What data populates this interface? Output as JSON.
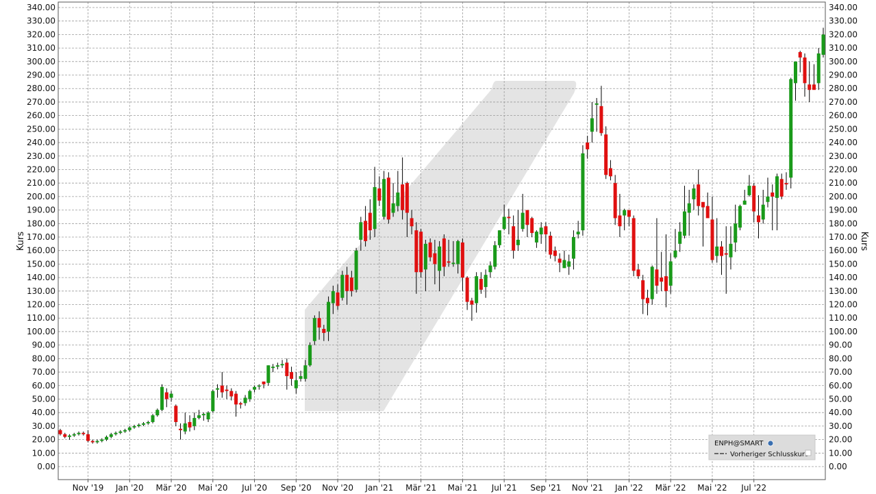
{
  "chart_data": {
    "type": "candlestick",
    "ylabel_left": "Kurs",
    "ylabel_right": "Kurs",
    "ylim": [
      0,
      340
    ],
    "y_tick_step": 10,
    "grid": true,
    "x_tick_labels": [
      "Nov '19",
      "Jan '20",
      "Mär '20",
      "Mai '20",
      "Jul '20",
      "Sep '20",
      "Nov '20",
      "Jan '21",
      "Mär '21",
      "Mai '21",
      "Jul '21",
      "Sep '21",
      "Nov '21",
      "Jan '22",
      "Mär '22",
      "Mai '22",
      "Jul '22"
    ],
    "x_tick_week_index": [
      6,
      15,
      24,
      33,
      42,
      51,
      60,
      69,
      78,
      87,
      96,
      105,
      114,
      123,
      132,
      141,
      150
    ],
    "up_color": "#1a9a1a",
    "down_color": "#e01010",
    "legend": {
      "placement": "bottom-right",
      "symbol": "ENPH@SMART",
      "prev_close_label": "Vorheriger Schlusskurs"
    },
    "candles": [
      [
        27,
        24,
        28,
        23
      ],
      [
        24,
        22,
        25,
        21
      ],
      [
        22,
        23,
        24,
        20
      ],
      [
        23,
        24,
        25,
        22
      ],
      [
        24,
        25,
        26,
        23
      ],
      [
        25,
        24,
        26,
        23
      ],
      [
        24,
        19,
        27,
        18
      ],
      [
        19,
        18,
        20,
        17
      ],
      [
        18,
        19,
        20,
        17
      ],
      [
        19,
        20,
        21,
        18
      ],
      [
        20,
        22,
        23,
        19
      ],
      [
        22,
        24,
        25,
        21
      ],
      [
        24,
        25,
        26,
        23
      ],
      [
        25,
        26,
        27,
        24
      ],
      [
        26,
        27,
        28,
        25
      ],
      [
        27,
        29,
        30,
        26
      ],
      [
        29,
        30,
        31,
        28
      ],
      [
        30,
        31,
        32,
        29
      ],
      [
        31,
        32,
        33,
        30
      ],
      [
        32,
        33,
        34,
        31
      ],
      [
        33,
        38,
        39,
        32
      ],
      [
        38,
        42,
        43,
        37
      ],
      [
        42,
        59,
        61,
        41
      ],
      [
        55,
        50,
        58,
        44
      ],
      [
        51,
        54,
        56,
        48
      ],
      [
        45,
        33,
        46,
        30
      ],
      [
        28,
        27,
        32,
        20
      ],
      [
        26,
        32,
        40,
        24
      ],
      [
        33,
        29,
        38,
        26
      ],
      [
        30,
        36,
        40,
        27
      ],
      [
        36,
        38,
        42,
        35
      ],
      [
        38,
        39,
        40,
        34
      ],
      [
        35,
        40,
        41,
        33
      ],
      [
        41,
        56,
        57,
        40
      ],
      [
        57,
        58,
        61,
        51
      ],
      [
        60,
        55,
        70,
        51
      ],
      [
        57,
        56,
        60,
        50
      ],
      [
        56,
        52,
        58,
        49
      ],
      [
        54,
        46,
        56,
        37
      ],
      [
        47,
        46,
        48,
        43
      ],
      [
        47,
        51,
        53,
        45
      ],
      [
        50,
        56,
        57,
        48
      ],
      [
        57,
        59,
        60,
        55
      ],
      [
        60,
        60,
        61,
        57
      ],
      [
        63,
        61,
        63,
        58
      ],
      [
        62,
        75,
        75,
        60
      ],
      [
        73,
        74,
        76,
        70
      ],
      [
        74,
        75,
        77,
        72
      ],
      [
        75,
        76,
        79,
        73
      ],
      [
        77,
        67,
        80,
        57
      ],
      [
        70,
        65,
        74,
        60
      ],
      [
        58,
        64,
        70,
        54
      ],
      [
        65,
        67,
        71,
        63
      ],
      [
        65,
        75,
        79,
        63
      ],
      [
        75,
        90,
        92,
        74
      ],
      [
        93,
        110,
        112,
        90
      ],
      [
        110,
        103,
        115,
        94
      ],
      [
        102,
        99,
        105,
        93
      ],
      [
        100,
        122,
        126,
        93
      ],
      [
        121,
        130,
        134,
        113
      ],
      [
        129,
        119,
        135,
        116
      ],
      [
        125,
        142,
        145,
        123
      ],
      [
        142,
        130,
        148,
        120
      ],
      [
        140,
        130,
        145,
        126
      ],
      [
        131,
        160,
        162,
        129
      ],
      [
        168,
        181,
        185,
        160
      ],
      [
        182,
        167,
        193,
        163
      ],
      [
        188,
        175,
        198,
        168
      ],
      [
        176,
        207,
        222,
        170
      ],
      [
        206,
        197,
        215,
        193
      ],
      [
        185,
        213,
        219,
        183
      ],
      [
        214,
        183,
        218,
        180
      ],
      [
        188,
        195,
        210,
        185
      ],
      [
        193,
        203,
        219,
        189
      ],
      [
        209,
        190,
        229,
        183
      ],
      [
        210,
        188,
        211,
        170
      ],
      [
        184,
        178,
        190,
        172
      ],
      [
        175,
        144,
        181,
        128
      ],
      [
        174,
        144,
        176,
        140
      ],
      [
        146,
        165,
        168,
        130
      ],
      [
        166,
        155,
        169,
        152
      ],
      [
        158,
        150,
        168,
        135
      ],
      [
        145,
        163,
        167,
        130
      ],
      [
        169,
        148,
        172,
        141
      ],
      [
        152,
        151,
        168,
        148
      ],
      [
        150,
        151,
        167,
        148
      ],
      [
        150,
        167,
        168,
        143
      ],
      [
        166,
        140,
        169,
        130
      ],
      [
        140,
        122,
        141,
        116
      ],
      [
        123,
        120,
        125,
        108
      ],
      [
        121,
        141,
        144,
        114
      ],
      [
        139,
        131,
        144,
        128
      ],
      [
        133,
        142,
        146,
        125
      ],
      [
        144,
        149,
        152,
        140
      ],
      [
        148,
        164,
        167,
        146
      ],
      [
        164,
        175,
        175,
        162
      ],
      [
        176,
        185,
        194,
        175
      ],
      [
        185,
        184,
        191,
        172
      ],
      [
        178,
        160,
        186,
        154
      ],
      [
        164,
        168,
        190,
        160
      ],
      [
        176,
        188,
        202,
        174
      ],
      [
        190,
        179,
        190,
        170
      ],
      [
        184,
        173,
        185,
        170
      ],
      [
        166,
        174,
        175,
        162
      ],
      [
        172,
        177,
        181,
        165
      ],
      [
        178,
        172,
        181,
        159
      ],
      [
        171,
        157,
        174,
        154
      ],
      [
        160,
        156,
        163,
        152
      ],
      [
        154,
        151,
        158,
        144
      ],
      [
        147,
        153,
        160,
        150
      ],
      [
        148,
        152,
        157,
        142
      ],
      [
        154,
        170,
        175,
        146
      ],
      [
        172,
        174,
        182,
        169
      ],
      [
        175,
        232,
        238,
        171
      ],
      [
        240,
        235,
        245,
        228
      ],
      [
        248,
        258,
        270,
        240
      ],
      [
        268,
        269,
        273,
        248
      ],
      [
        267,
        247,
        282,
        245
      ],
      [
        246,
        216,
        252,
        213
      ],
      [
        221,
        215,
        227,
        212
      ],
      [
        210,
        184,
        216,
        179
      ],
      [
        186,
        178,
        202,
        170
      ],
      [
        186,
        190,
        191,
        175
      ],
      [
        190,
        185,
        190,
        178
      ],
      [
        184,
        145,
        186,
        141
      ],
      [
        146,
        141,
        150,
        139
      ],
      [
        138,
        124,
        142,
        113
      ],
      [
        125,
        121,
        131,
        112
      ],
      [
        124,
        148,
        149,
        120
      ],
      [
        146,
        134,
        184,
        128
      ],
      [
        140,
        137,
        159,
        130
      ],
      [
        141,
        130,
        172,
        118
      ],
      [
        134,
        152,
        158,
        128
      ],
      [
        155,
        160,
        176,
        154
      ],
      [
        165,
        174,
        181,
        159
      ],
      [
        171,
        189,
        208,
        169
      ],
      [
        188,
        195,
        205,
        171
      ],
      [
        198,
        206,
        209,
        190
      ],
      [
        209,
        193,
        220,
        186
      ],
      [
        196,
        192,
        194,
        163
      ],
      [
        193,
        184,
        203,
        185
      ],
      [
        183,
        153,
        200,
        151
      ],
      [
        156,
        163,
        184,
        151
      ],
      [
        163,
        156,
        167,
        142
      ],
      [
        158,
        157,
        178,
        128
      ],
      [
        155,
        165,
        178,
        146
      ],
      [
        166,
        180,
        194,
        159
      ],
      [
        177,
        193,
        194,
        175
      ],
      [
        194,
        197,
        205,
        194
      ],
      [
        201,
        208,
        216,
        200
      ],
      [
        208,
        189,
        210,
        181
      ],
      [
        186,
        181,
        201,
        169
      ],
      [
        183,
        194,
        205,
        180
      ],
      [
        196,
        200,
        214,
        192
      ],
      [
        203,
        200,
        209,
        175
      ],
      [
        199,
        215,
        217,
        175
      ],
      [
        213,
        200,
        217,
        198
      ],
      [
        210,
        209,
        218,
        205
      ],
      [
        214,
        287,
        288,
        206
      ],
      [
        284,
        300,
        300,
        271
      ],
      [
        307,
        303,
        308,
        292
      ],
      [
        303,
        284,
        306,
        274
      ],
      [
        283,
        279,
        300,
        270
      ],
      [
        283,
        279,
        298,
        280
      ],
      [
        284,
        306,
        310,
        279
      ],
      [
        305,
        320,
        325,
        303
      ]
    ]
  }
}
